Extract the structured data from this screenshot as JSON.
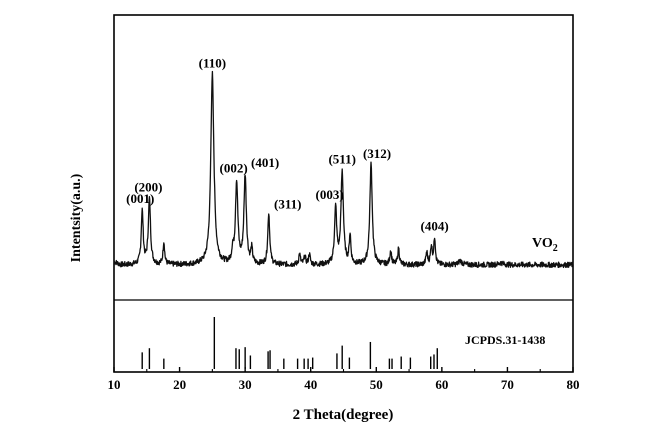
{
  "chart_data": {
    "type": "line",
    "title": "",
    "xlabel": "2 Theta(degree)",
    "ylabel": "Intentsity(a.u.)",
    "xlim": [
      10,
      80
    ],
    "x_ticks": [
      10,
      20,
      30,
      40,
      50,
      60,
      70,
      80
    ],
    "x_tick_labels": [
      "10",
      "20",
      "30",
      "40",
      "50",
      "60",
      "70",
      "80"
    ],
    "grid": false,
    "series": [
      {
        "name": "VO",
        "name_subscript": "2",
        "baseline": 3,
        "peaks": [
          {
            "x": 14.3,
            "y": 26,
            "w": 0.18
          },
          {
            "x": 15.4,
            "y": 32,
            "w": 0.2
          },
          {
            "x": 17.6,
            "y": 11,
            "w": 0.15
          },
          {
            "x": 25.0,
            "y": 93,
            "w": 0.28
          },
          {
            "x": 28.1,
            "y": 6,
            "w": 0.15
          },
          {
            "x": 28.7,
            "y": 40,
            "w": 0.22
          },
          {
            "x": 30.0,
            "y": 43,
            "w": 0.22
          },
          {
            "x": 31.0,
            "y": 7,
            "w": 0.15
          },
          {
            "x": 33.6,
            "y": 25,
            "w": 0.18
          },
          {
            "x": 38.3,
            "y": 5,
            "w": 0.15
          },
          {
            "x": 39.1,
            "y": 4,
            "w": 0.15
          },
          {
            "x": 39.8,
            "y": 5,
            "w": 0.15
          },
          {
            "x": 43.8,
            "y": 27,
            "w": 0.2
          },
          {
            "x": 44.8,
            "y": 45,
            "w": 0.22
          },
          {
            "x": 46.0,
            "y": 14,
            "w": 0.15
          },
          {
            "x": 49.2,
            "y": 49,
            "w": 0.22
          },
          {
            "x": 52.2,
            "y": 7,
            "w": 0.15
          },
          {
            "x": 53.4,
            "y": 8,
            "w": 0.15
          },
          {
            "x": 57.7,
            "y": 6,
            "w": 0.15
          },
          {
            "x": 58.4,
            "y": 9,
            "w": 0.15
          },
          {
            "x": 58.9,
            "y": 13,
            "w": 0.15
          },
          {
            "x": 62.8,
            "y": 2,
            "w": 0.3
          },
          {
            "x": 69.0,
            "y": 1,
            "w": 0.4
          }
        ]
      }
    ],
    "peak_labels": [
      {
        "x": 14.3,
        "y": 26,
        "label": "(001)"
      },
      {
        "x": 15.4,
        "y": 32,
        "label": "(200)"
      },
      {
        "x": 25.0,
        "y": 93,
        "label": "(110)"
      },
      {
        "x": 28.7,
        "y": 40,
        "label": "(002)"
      },
      {
        "x": 30.0,
        "y": 43,
        "label": "(401)"
      },
      {
        "x": 33.6,
        "y": 25,
        "label": "(311)"
      },
      {
        "x": 43.8,
        "y": 27,
        "label": "(003)"
      },
      {
        "x": 44.8,
        "y": 45,
        "label": "(511)"
      },
      {
        "x": 49.2,
        "y": 49,
        "label": "(312)"
      },
      {
        "x": 58.9,
        "y": 13,
        "label": "(404)"
      }
    ],
    "reference_label": "JCPDS.31-1438",
    "reference_lines": [
      {
        "x": 14.3,
        "h": 0.32
      },
      {
        "x": 15.4,
        "h": 0.4
      },
      {
        "x": 17.6,
        "h": 0.2
      },
      {
        "x": 25.3,
        "h": 1.0
      },
      {
        "x": 28.6,
        "h": 0.4
      },
      {
        "x": 29.1,
        "h": 0.38
      },
      {
        "x": 30.0,
        "h": 0.42
      },
      {
        "x": 30.8,
        "h": 0.26
      },
      {
        "x": 33.5,
        "h": 0.34
      },
      {
        "x": 33.8,
        "h": 0.36
      },
      {
        "x": 35.9,
        "h": 0.2
      },
      {
        "x": 38.0,
        "h": 0.2
      },
      {
        "x": 39.0,
        "h": 0.2
      },
      {
        "x": 39.6,
        "h": 0.2
      },
      {
        "x": 40.3,
        "h": 0.22
      },
      {
        "x": 44.0,
        "h": 0.3
      },
      {
        "x": 44.8,
        "h": 0.45
      },
      {
        "x": 45.9,
        "h": 0.22
      },
      {
        "x": 49.1,
        "h": 0.52
      },
      {
        "x": 52.0,
        "h": 0.2
      },
      {
        "x": 52.4,
        "h": 0.2
      },
      {
        "x": 53.8,
        "h": 0.24
      },
      {
        "x": 55.2,
        "h": 0.22
      },
      {
        "x": 58.3,
        "h": 0.24
      },
      {
        "x": 58.8,
        "h": 0.28
      },
      {
        "x": 59.3,
        "h": 0.4
      }
    ]
  }
}
